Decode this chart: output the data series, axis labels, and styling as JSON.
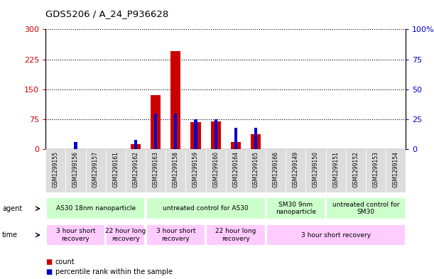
{
  "title": "GDS5206 / A_24_P936628",
  "samples": [
    "GSM1299155",
    "GSM1299156",
    "GSM1299157",
    "GSM1299161",
    "GSM1299162",
    "GSM1299163",
    "GSM1299158",
    "GSM1299159",
    "GSM1299160",
    "GSM1299164",
    "GSM1299165",
    "GSM1299166",
    "GSM1299149",
    "GSM1299150",
    "GSM1299151",
    "GSM1299152",
    "GSM1299153",
    "GSM1299154"
  ],
  "count_values": [
    0,
    0,
    0,
    0,
    12,
    135,
    245,
    68,
    70,
    18,
    38,
    0,
    0,
    0,
    0,
    0,
    0,
    0
  ],
  "percentile_values": [
    0,
    6,
    0,
    0,
    8,
    30,
    30,
    25,
    25,
    18,
    18,
    0,
    0,
    0,
    0,
    0,
    0,
    0
  ],
  "count_color": "#cc0000",
  "percentile_color": "#0000cc",
  "ylim_left": [
    0,
    300
  ],
  "ylim_right": [
    0,
    100
  ],
  "yticks_left": [
    0,
    75,
    150,
    225,
    300
  ],
  "yticks_right": [
    0,
    25,
    50,
    75,
    100
  ],
  "ytick_labels_left": [
    "0",
    "75",
    "150",
    "225",
    "300"
  ],
  "ytick_labels_right": [
    "0",
    "25",
    "50",
    "75",
    "100%"
  ],
  "agent_labels": [
    {
      "text": "AS30 18nm nanoparticle",
      "start": 0,
      "end": 5,
      "color": "#ccffcc"
    },
    {
      "text": "untreated control for AS30",
      "start": 5,
      "end": 11,
      "color": "#ccffcc"
    },
    {
      "text": "SM30 9nm\nnanoparticle",
      "start": 11,
      "end": 14,
      "color": "#ccffcc"
    },
    {
      "text": "untreated control for\nSM30",
      "start": 14,
      "end": 18,
      "color": "#ccffcc"
    }
  ],
  "time_labels": [
    {
      "text": "3 hour short\nrecovery",
      "start": 0,
      "end": 3,
      "color": "#ffccff"
    },
    {
      "text": "22 hour long\nrecovery",
      "start": 3,
      "end": 5,
      "color": "#ffccff"
    },
    {
      "text": "3 hour short\nrecovery",
      "start": 5,
      "end": 8,
      "color": "#ffccff"
    },
    {
      "text": "22 hour long\nrecovery",
      "start": 8,
      "end": 11,
      "color": "#ffccff"
    },
    {
      "text": "3 hour short recovery",
      "start": 11,
      "end": 18,
      "color": "#ffccff"
    }
  ],
  "legend_count_label": "count",
  "legend_percentile_label": "percentile rank within the sample",
  "fig_bg": "#ffffff",
  "plot_bg": "#ffffff",
  "xtick_bg": "#dddddd",
  "n_samples": 18,
  "red_bar_width": 0.5,
  "blue_bar_width": 0.15
}
